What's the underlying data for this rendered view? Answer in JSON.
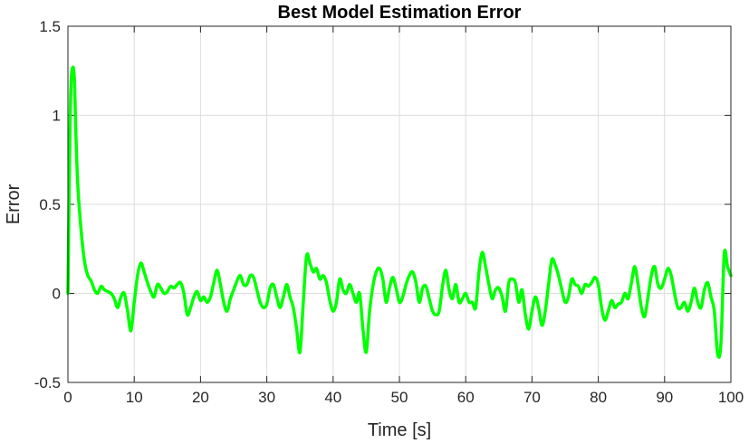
{
  "chart_data": {
    "type": "line",
    "title": "Best Model Estimation Error",
    "xlabel": "Time [s]",
    "ylabel": "Error",
    "xlim": [
      0,
      100
    ],
    "ylim": [
      -0.5,
      1.5
    ],
    "xticks": [
      0,
      10,
      20,
      30,
      40,
      50,
      60,
      70,
      80,
      90,
      100
    ],
    "yticks": [
      -0.5,
      0,
      0.5,
      1,
      1.5
    ],
    "xtick_labels": [
      "0",
      "10",
      "20",
      "30",
      "40",
      "50",
      "60",
      "70",
      "80",
      "90",
      "100"
    ],
    "ytick_labels": [
      "-0.5",
      "0",
      "0.5",
      "1",
      "1.5"
    ],
    "grid": true,
    "legend": "none",
    "line_color": "#00ff00",
    "series": [
      {
        "x": [
          0,
          0.3,
          0.5,
          0.8,
          1.0,
          1.2,
          1.5,
          2.0,
          2.5,
          3.0,
          3.5,
          4.0,
          4.5,
          5.0,
          5.5,
          6.0,
          6.5,
          7.0,
          7.5,
          8.0,
          8.5,
          9.0,
          9.5,
          10.0,
          10.5,
          11.0,
          11.5,
          12.0,
          12.5,
          13.0,
          13.5,
          14.0,
          14.5,
          15.0,
          15.5,
          16.0,
          16.5,
          17.0,
          17.5,
          18.0,
          18.5,
          19.0,
          19.5,
          20.0,
          20.5,
          21.0,
          21.5,
          22.0,
          22.5,
          23.0,
          23.5,
          24.0,
          24.5,
          25.0,
          25.5,
          26.0,
          26.5,
          27.0,
          27.5,
          28.0,
          28.5,
          29.0,
          29.5,
          30.0,
          30.5,
          31.0,
          31.5,
          32.0,
          32.5,
          33.0,
          33.5,
          34.0,
          34.5,
          35.0,
          35.5,
          36.0,
          36.5,
          37.0,
          37.5,
          38.0,
          38.5,
          39.0,
          39.5,
          40.0,
          40.5,
          41.0,
          41.5,
          42.0,
          42.5,
          43.0,
          43.5,
          44.0,
          44.5,
          45.0,
          45.5,
          46.0,
          46.5,
          47.0,
          47.5,
          48.0,
          48.5,
          49.0,
          49.5,
          50.0,
          50.5,
          51.0,
          51.5,
          52.0,
          52.5,
          53.0,
          53.5,
          54.0,
          54.5,
          55.0,
          55.5,
          56.0,
          56.5,
          57.0,
          57.5,
          58.0,
          58.5,
          59.0,
          59.5,
          60.0,
          60.5,
          61.0,
          61.5,
          62.0,
          62.5,
          63.0,
          63.5,
          64.0,
          64.5,
          65.0,
          65.5,
          66.0,
          66.5,
          67.0,
          67.5,
          68.0,
          68.5,
          69.0,
          69.5,
          70.0,
          70.5,
          71.0,
          71.5,
          72.0,
          72.5,
          73.0,
          73.5,
          74.0,
          74.5,
          75.0,
          75.5,
          76.0,
          76.5,
          77.0,
          77.5,
          78.0,
          78.5,
          79.0,
          79.5,
          80.0,
          80.5,
          81.0,
          81.5,
          82.0,
          82.5,
          83.0,
          83.5,
          84.0,
          84.5,
          85.0,
          85.5,
          86.0,
          86.5,
          87.0,
          87.5,
          88.0,
          88.5,
          89.0,
          89.5,
          90.0,
          90.5,
          91.0,
          91.5,
          92.0,
          92.5,
          93.0,
          93.5,
          94.0,
          94.5,
          95.0,
          95.5,
          96.0,
          96.5,
          97.0,
          97.5,
          98.0,
          98.5,
          99.0,
          99.5,
          100.0
        ],
        "y": [
          0.0,
          0.9,
          1.2,
          1.27,
          1.18,
          0.9,
          0.6,
          0.35,
          0.18,
          0.1,
          0.07,
          0.02,
          0.0,
          0.04,
          0.02,
          0.01,
          0.0,
          -0.03,
          -0.08,
          -0.02,
          0.0,
          -0.1,
          -0.21,
          -0.05,
          0.1,
          0.17,
          0.12,
          0.06,
          0.01,
          -0.02,
          0.05,
          0.03,
          0.0,
          0.01,
          0.04,
          0.03,
          0.05,
          0.06,
          0.0,
          -0.12,
          -0.08,
          -0.02,
          0.01,
          -0.04,
          -0.02,
          -0.05,
          -0.02,
          0.06,
          0.13,
          0.05,
          -0.05,
          -0.1,
          -0.03,
          0.02,
          0.07,
          0.1,
          0.05,
          0.05,
          0.1,
          0.09,
          0.02,
          -0.05,
          -0.08,
          -0.06,
          0.03,
          0.05,
          -0.02,
          -0.08,
          -0.02,
          0.05,
          -0.02,
          -0.08,
          -0.2,
          -0.33,
          -0.05,
          0.21,
          0.17,
          0.12,
          0.14,
          0.08,
          0.1,
          0.06,
          -0.04,
          -0.1,
          -0.05,
          0.08,
          0.02,
          0.0,
          0.05,
          0.0,
          -0.05,
          0.0,
          -0.2,
          -0.33,
          -0.1,
          0.04,
          0.12,
          0.14,
          0.08,
          -0.05,
          0.03,
          0.09,
          0.03,
          -0.05,
          -0.02,
          0.05,
          0.1,
          0.12,
          0.06,
          -0.05,
          0.03,
          0.04,
          -0.03,
          -0.1,
          -0.12,
          -0.1,
          0.04,
          0.13,
          0.02,
          -0.03,
          0.05,
          -0.05,
          -0.03,
          0.0,
          -0.05,
          -0.05,
          -0.08,
          0.12,
          0.23,
          0.15,
          0.05,
          -0.03,
          0.02,
          0.03,
          -0.02,
          -0.1,
          0.06,
          0.08,
          0.06,
          -0.05,
          0.02,
          -0.12,
          -0.2,
          -0.1,
          -0.02,
          -0.08,
          -0.18,
          -0.1,
          0.05,
          0.19,
          0.16,
          0.1,
          0.02,
          -0.05,
          -0.02,
          0.08,
          0.05,
          0.04,
          0.0,
          0.05,
          0.04,
          0.06,
          0.09,
          0.05,
          -0.08,
          -0.15,
          -0.1,
          -0.04,
          -0.08,
          -0.06,
          -0.05,
          0.0,
          -0.03,
          0.06,
          0.15,
          0.05,
          -0.08,
          -0.13,
          -0.02,
          0.1,
          0.15,
          0.05,
          0.03,
          0.08,
          0.14,
          0.1,
          0.0,
          -0.08,
          -0.08,
          -0.05,
          -0.1,
          -0.05,
          0.03,
          -0.05,
          -0.08,
          0.02,
          0.06,
          -0.02,
          -0.1,
          -0.34,
          -0.28,
          0.22,
          0.15,
          0.1
        ]
      }
    ]
  }
}
